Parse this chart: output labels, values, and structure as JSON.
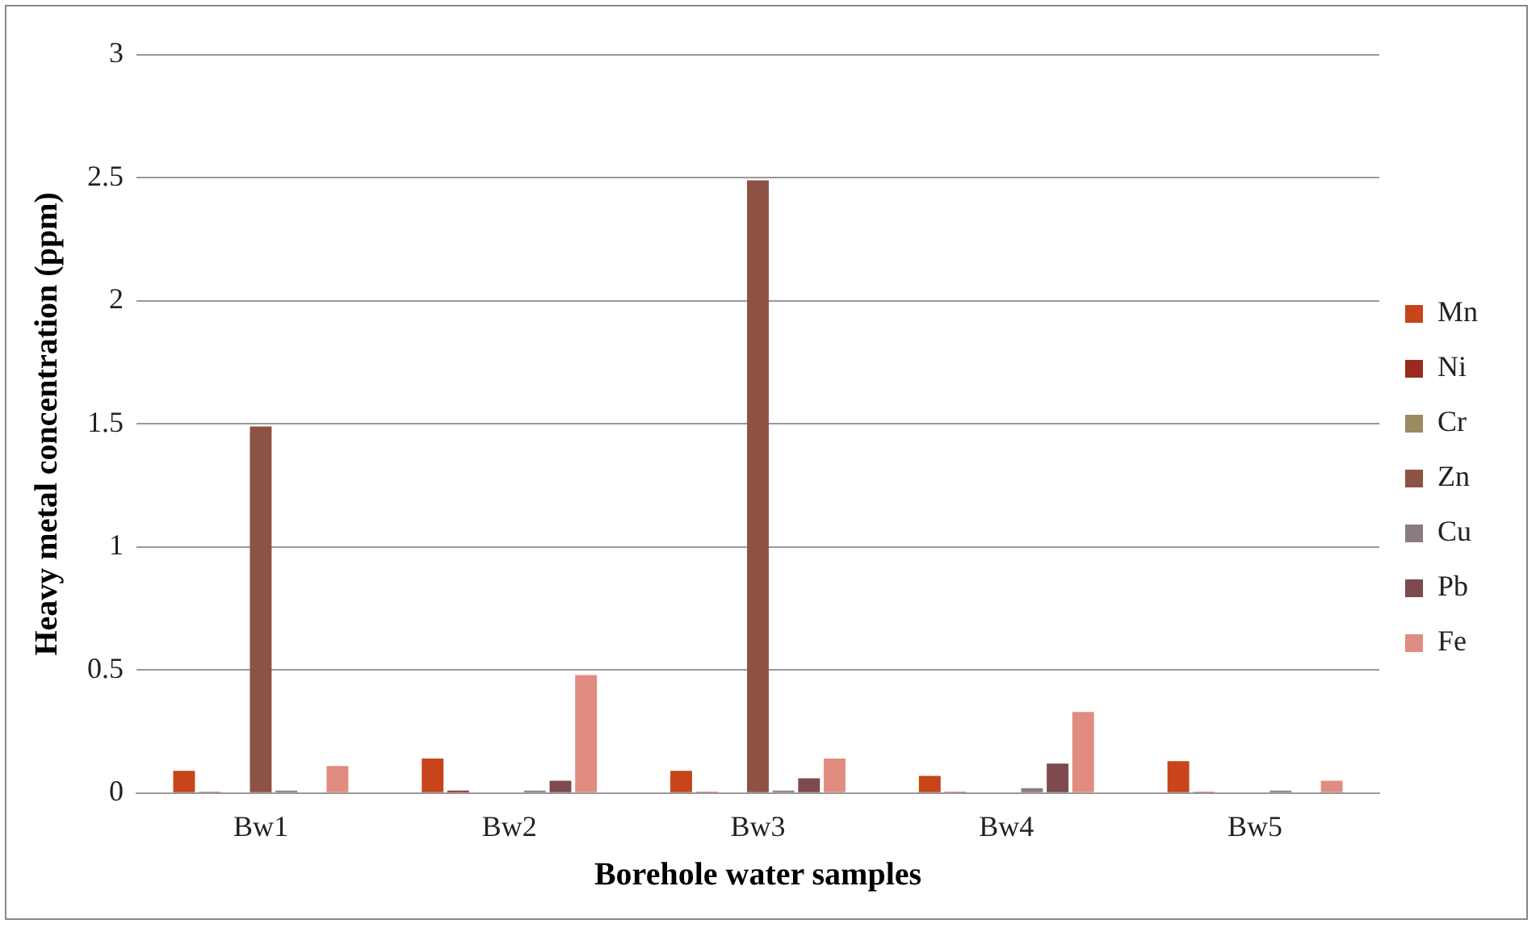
{
  "chart_data": {
    "type": "bar",
    "xlabel": "Borehole water samples",
    "ylabel": "Heavy metal concentration (ppm)",
    "categories": [
      "Bw1",
      "Bw2",
      "Bw3",
      "Bw4",
      "Bw5"
    ],
    "series": [
      {
        "name": "Mn",
        "color": "#c8441a",
        "values": [
          0.09,
          0.14,
          0.09,
          0.07,
          0.13
        ]
      },
      {
        "name": "Ni",
        "color": "#9b2a1e",
        "values": [
          0.005,
          0.01,
          0.005,
          0.005,
          0.005
        ]
      },
      {
        "name": "Cr",
        "color": "#9c8a62",
        "values": [
          0,
          0,
          0,
          0,
          0
        ]
      },
      {
        "name": "Zn",
        "color": "#8e5244",
        "values": [
          1.49,
          0,
          2.49,
          0,
          0
        ]
      },
      {
        "name": "Cu",
        "color": "#8a7b82",
        "values": [
          0.01,
          0.01,
          0.01,
          0.02,
          0.01
        ]
      },
      {
        "name": "Pb",
        "color": "#7d4a4e",
        "values": [
          0,
          0.05,
          0.06,
          0.12,
          0
        ]
      },
      {
        "name": "Fe",
        "color": "#e08c80",
        "values": [
          0.11,
          0.48,
          0.14,
          0.33,
          0.05
        ]
      }
    ],
    "ylim": [
      0,
      3
    ],
    "yticks": [
      0,
      0.5,
      1,
      1.5,
      2,
      2.5,
      3
    ],
    "grid": "y",
    "legend": "right"
  }
}
